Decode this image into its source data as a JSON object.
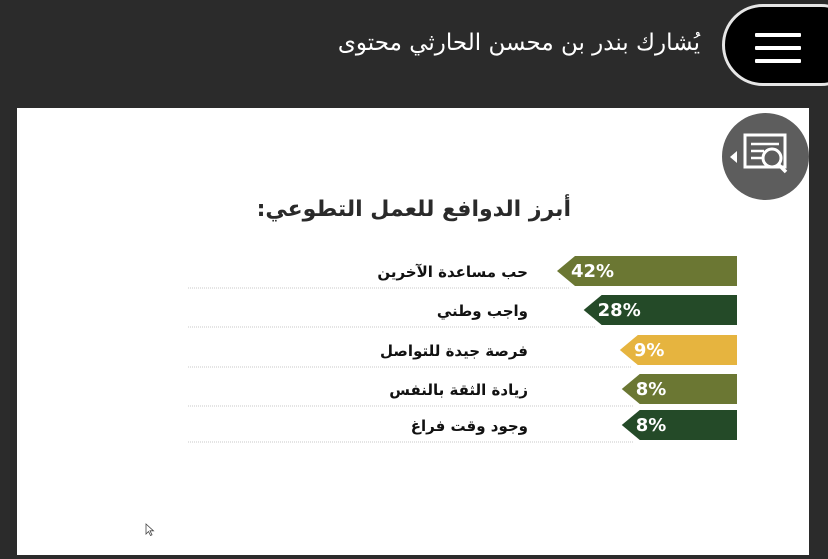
{
  "header": {
    "title": "يُشارك بندر بن محسن الحارثي محتوى",
    "menu_icon": "hamburger-menu-icon"
  },
  "toolbar": {
    "search_icon": "document-search-icon"
  },
  "chart_data": {
    "type": "bar",
    "title": "أبرز الدوافع للعمل التطوعي:",
    "categories": [
      "حب مساعدة الآخرين",
      "واجب وطني",
      "فرصة جيدة للتواصل",
      "زيادة الثقة بالنفس",
      "وجود وقت فراغ"
    ],
    "values": [
      42,
      28,
      9,
      8,
      8
    ],
    "value_labels": [
      "42%",
      "28%",
      "9%",
      "8%",
      "8%"
    ],
    "colors": [
      "#6b7733",
      "#244a28",
      "#e6b43f",
      "#6b7733",
      "#244a28"
    ],
    "xlim": [
      0,
      42
    ],
    "orientation": "horizontal",
    "legend": "none",
    "grid": false
  }
}
